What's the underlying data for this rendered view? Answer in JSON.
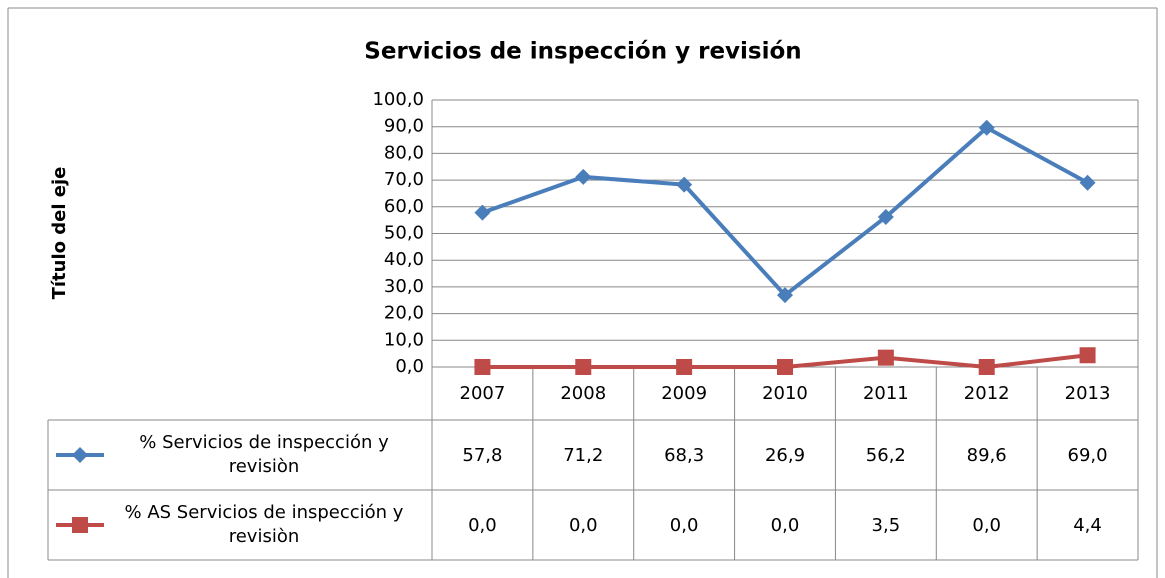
{
  "chart_data": {
    "type": "line",
    "title": "Servicios de inspección y revisión",
    "y_label": "Título del eje",
    "categories": [
      "2007",
      "2008",
      "2009",
      "2010",
      "2011",
      "2012",
      "2013"
    ],
    "series": [
      {
        "name": "% Servicios de inspección y revisiòn",
        "color": "#4a7ebb",
        "marker": "diamond",
        "values": [
          57.8,
          71.2,
          68.3,
          26.9,
          56.2,
          89.6,
          69.0
        ],
        "value_labels": [
          "57,8",
          "71,2",
          "68,3",
          "26,9",
          "56,2",
          "89,6",
          "69,0"
        ]
      },
      {
        "name": "% AS Servicios de inspección y revisiòn",
        "color": "#be4b48",
        "marker": "square",
        "values": [
          0.0,
          0.0,
          0.0,
          0.0,
          3.5,
          0.0,
          4.4
        ],
        "value_labels": [
          "0,0",
          "0,0",
          "0,0",
          "0,0",
          "3,5",
          "0,0",
          "4,4"
        ]
      }
    ],
    "ylim": [
      0,
      100
    ],
    "yticks": [
      {
        "value": 0,
        "label": "0,0"
      },
      {
        "value": 10,
        "label": "10,0"
      },
      {
        "value": 20,
        "label": "20,0"
      },
      {
        "value": 30,
        "label": "30,0"
      },
      {
        "value": 40,
        "label": "40,0"
      },
      {
        "value": 50,
        "label": "50,0"
      },
      {
        "value": 60,
        "label": "60,0"
      },
      {
        "value": 70,
        "label": "70,0"
      },
      {
        "value": 80,
        "label": "80,0"
      },
      {
        "value": 90,
        "label": "90,0"
      },
      {
        "value": 100,
        "label": "100,0"
      }
    ],
    "grid": true
  }
}
